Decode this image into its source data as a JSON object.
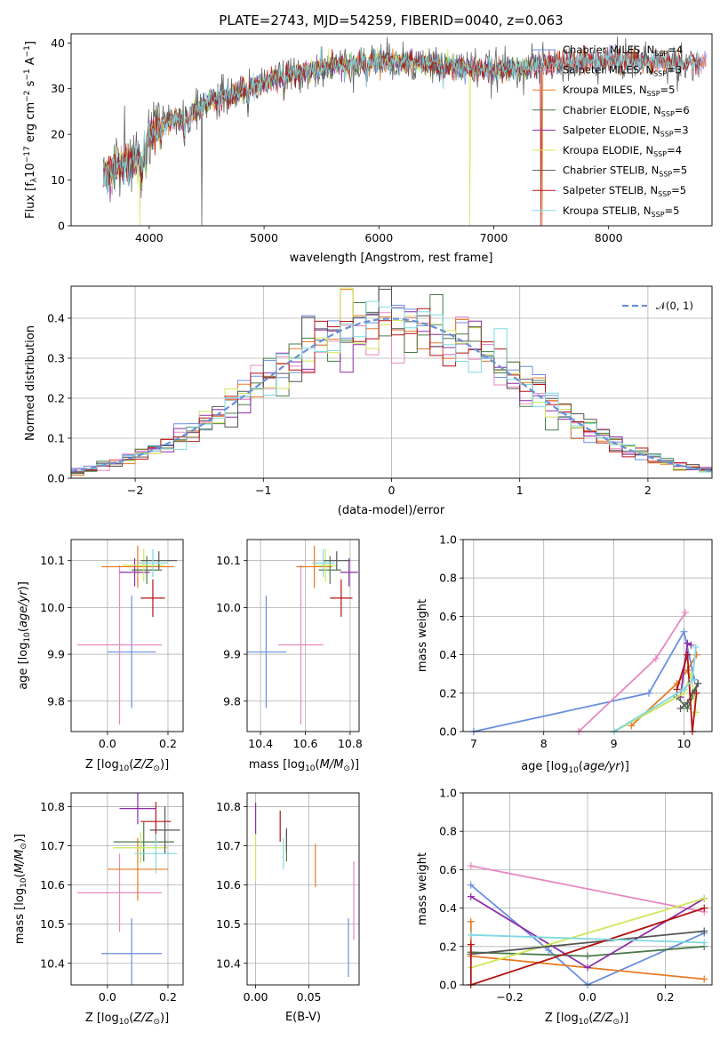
{
  "colors": {
    "chabrier_miles": "#6a8fe0",
    "salpeter_miles": "#e888c0",
    "kroupa_miles": "#e87a24",
    "chabrier_elodie": "#4a7a4a",
    "salpeter_elodie": "#8e2ea8",
    "kroupa_elodie": "#cfe85a",
    "chabrier_stelib": "#555555",
    "salpeter_stelib": "#b41414",
    "kroupa_stelib": "#7fd8e0",
    "normal_dashed": "#6a8fd8",
    "grid": "#b0b0b0"
  },
  "chart_data": [
    {
      "id": "spectrum",
      "type": "line",
      "title": "PLATE=2743, MJD=54259, FIBERID=0040, z=0.063",
      "xlabel": "wavelength [Angstrom, rest frame]",
      "ylabel": "Flux [f_λ 10^-17 erg cm^-2 s^-1 A^-1]",
      "xlim": [
        3320,
        8900
      ],
      "ylim": [
        0,
        42
      ],
      "xticks": [
        4000,
        5000,
        6000,
        7000,
        8000
      ],
      "yticks": [
        0,
        10,
        20,
        30,
        40
      ],
      "grid": false,
      "legend_position": "top-right",
      "series": [
        {
          "name": "Chabrier MILES, N_SSP=4",
          "color_key": "chabrier_miles"
        },
        {
          "name": "Salpeter MILES, N_SSP=3",
          "color_key": "salpeter_miles"
        },
        {
          "name": "Kroupa MILES, N_SSP=5",
          "color_key": "kroupa_miles"
        },
        {
          "name": "Chabrier ELODIE, N_SSP=6",
          "color_key": "chabrier_elodie"
        },
        {
          "name": "Salpeter ELODIE, N_SSP=3",
          "color_key": "salpeter_elodie"
        },
        {
          "name": "Kroupa ELODIE, N_SSP=4",
          "color_key": "kroupa_elodie"
        },
        {
          "name": "Chabrier STELIB, N_SSP=5",
          "color_key": "chabrier_stelib"
        },
        {
          "name": "Salpeter STELIB, N_SSP=5",
          "color_key": "salpeter_stelib"
        },
        {
          "name": "Kroupa STELIB, N_SSP=5",
          "color_key": "kroupa_stelib"
        }
      ],
      "continuum": {
        "x": [
          3580,
          3700,
          3800,
          3900,
          3950,
          4000,
          4100,
          4200,
          4300,
          4400,
          4500,
          4600,
          4700,
          4800,
          4900,
          5000,
          5200,
          5400,
          5600,
          5800,
          6000,
          6200,
          6400,
          6600,
          6800,
          7000,
          7200,
          7400,
          7600,
          7800,
          8000,
          8200,
          8400,
          8600,
          8800
        ],
        "y": [
          11,
          12,
          13.5,
          14.5,
          16,
          20,
          22,
          23,
          24,
          25,
          27,
          28,
          28.5,
          29.5,
          30.5,
          31.5,
          33,
          34,
          35,
          35.5,
          36,
          35.8,
          35.5,
          35,
          34.5,
          34,
          34.5,
          35,
          35.5,
          35.8,
          36,
          36,
          36,
          35.8,
          35.5
        ]
      }
    },
    {
      "id": "residuals",
      "type": "step",
      "xlabel": "(data-model)/error",
      "ylabel": "Normed distribution",
      "xlim": [
        -2.5,
        2.5
      ],
      "ylim": [
        0,
        0.48
      ],
      "xticks": [
        -2,
        -1,
        0,
        1,
        2
      ],
      "yticks": [
        0.0,
        0.1,
        0.2,
        0.3,
        0.4
      ],
      "grid": true,
      "legend_position": "top-right",
      "normal_label": "𝒩(0, 1)"
    },
    {
      "id": "age_vs_Z",
      "type": "errorbar",
      "xlabel": "Z [log10(Z/Z⊙)]",
      "ylabel": "age  [log10(age/yr)]",
      "xlim": [
        -0.12,
        0.25
      ],
      "ylim": [
        9.735,
        10.145
      ],
      "xticks": [
        0.0,
        0.2
      ],
      "yticks": [
        9.8,
        9.9,
        10.0,
        10.1
      ],
      "grid": true,
      "points": [
        {
          "k": "chabrier_miles",
          "x": 0.08,
          "y": 9.905,
          "ex": 0.08,
          "ey": 0.12
        },
        {
          "k": "salpeter_miles",
          "x": 0.04,
          "y": 9.92,
          "ex": 0.14,
          "ey": 0.17
        },
        {
          "k": "kroupa_miles",
          "x": 0.1,
          "y": 10.087,
          "ex": 0.12,
          "ey": 0.045
        },
        {
          "k": "chabrier_elodie",
          "x": 0.13,
          "y": 10.08,
          "ex": 0.05,
          "ey": 0.03
        },
        {
          "k": "salpeter_elodie",
          "x": 0.09,
          "y": 10.075,
          "ex": 0.05,
          "ey": 0.03
        },
        {
          "k": "kroupa_elodie",
          "x": 0.12,
          "y": 10.09,
          "ex": 0.07,
          "ey": 0.035
        },
        {
          "k": "chabrier_stelib",
          "x": 0.17,
          "y": 10.1,
          "ex": 0.06,
          "ey": 0.02
        },
        {
          "k": "salpeter_stelib",
          "x": 0.15,
          "y": 10.02,
          "ex": 0.04,
          "ey": 0.04
        },
        {
          "k": "kroupa_stelib",
          "x": 0.15,
          "y": 10.095,
          "ex": 0.05,
          "ey": 0.03
        }
      ]
    },
    {
      "id": "age_vs_mass",
      "type": "errorbar",
      "xlabel": "mass [log10(M/M⊙)]",
      "xlim": [
        10.34,
        10.84
      ],
      "ylim": [
        9.735,
        10.145
      ],
      "xticks": [
        10.4,
        10.6,
        10.8
      ],
      "yticks": [
        9.8,
        9.9,
        10.0,
        10.1
      ],
      "grid": true,
      "points": [
        {
          "k": "chabrier_miles",
          "x": 10.425,
          "y": 9.905,
          "ex": 0.09,
          "ey": 0.12
        },
        {
          "k": "salpeter_miles",
          "x": 10.58,
          "y": 9.92,
          "ex": 0.1,
          "ey": 0.17
        },
        {
          "k": "kroupa_miles",
          "x": 10.64,
          "y": 10.087,
          "ex": 0.08,
          "ey": 0.045
        },
        {
          "k": "chabrier_elodie",
          "x": 10.71,
          "y": 10.08,
          "ex": 0.05,
          "ey": 0.03
        },
        {
          "k": "salpeter_elodie",
          "x": 10.795,
          "y": 10.075,
          "ex": 0.04,
          "ey": 0.03
        },
        {
          "k": "kroupa_elodie",
          "x": 10.69,
          "y": 10.09,
          "ex": 0.05,
          "ey": 0.035
        },
        {
          "k": "chabrier_stelib",
          "x": 10.74,
          "y": 10.1,
          "ex": 0.06,
          "ey": 0.02
        },
        {
          "k": "salpeter_stelib",
          "x": 10.76,
          "y": 10.02,
          "ex": 0.05,
          "ey": 0.04
        },
        {
          "k": "kroupa_stelib",
          "x": 10.68,
          "y": 10.095,
          "ex": 0.05,
          "ey": 0.03
        }
      ]
    },
    {
      "id": "weight_vs_age",
      "type": "line",
      "xlabel": "age  [log10(age/yr)]",
      "ylabel": "mass weight",
      "xlim": [
        6.85,
        10.4
      ],
      "ylim": [
        0,
        1
      ],
      "xticks": [
        7,
        8,
        9,
        10
      ],
      "yticks": [
        0.0,
        0.2,
        0.4,
        0.6,
        0.8,
        1.0
      ],
      "grid": true,
      "series": [
        {
          "k": "chabrier_miles",
          "x": [
            7.0,
            9.5,
            10.0,
            10.15
          ],
          "y": [
            0.0,
            0.2,
            0.52,
            0.27
          ]
        },
        {
          "k": "salpeter_miles",
          "x": [
            8.5,
            9.6,
            10.02
          ],
          "y": [
            0.0,
            0.38,
            0.62
          ]
        },
        {
          "k": "kroupa_miles",
          "x": [
            9.25,
            9.9,
            10.05,
            10.18
          ],
          "y": [
            0.03,
            0.25,
            0.32,
            0.4
          ]
        },
        {
          "k": "chabrier_elodie",
          "x": [
            9.0,
            9.9,
            10.05,
            10.15,
            10.2
          ],
          "y": [
            0.0,
            0.18,
            0.12,
            0.2,
            0.25
          ]
        },
        {
          "k": "salpeter_elodie",
          "x": [
            9.95,
            10.05,
            10.1
          ],
          "y": [
            0.18,
            0.46,
            0.45
          ]
        },
        {
          "k": "kroupa_elodie",
          "x": [
            9.0,
            10.0,
            10.1,
            10.17
          ],
          "y": [
            0.0,
            0.2,
            0.3,
            0.1
          ]
        },
        {
          "k": "chabrier_stelib",
          "x": [
            9.95,
            10.05,
            10.12,
            10.2
          ],
          "y": [
            0.12,
            0.15,
            0.2,
            0.25
          ]
        },
        {
          "k": "salpeter_stelib",
          "x": [
            9.9,
            10.05,
            10.12,
            10.18
          ],
          "y": [
            0.22,
            0.4,
            0.0,
            0.2
          ]
        },
        {
          "k": "kroupa_stelib",
          "x": [
            9.0,
            10.0,
            10.12,
            10.17
          ],
          "y": [
            0.0,
            0.22,
            0.27,
            0.44
          ]
        }
      ]
    },
    {
      "id": "mass_vs_Z",
      "type": "errorbar",
      "xlabel": "Z [log10(Z/Z⊙)]",
      "ylabel": "mass [log10(M/M⊙)]",
      "xlim": [
        -0.12,
        0.25
      ],
      "ylim": [
        10.345,
        10.835
      ],
      "xticks": [
        0.0,
        0.2
      ],
      "yticks": [
        10.4,
        10.5,
        10.6,
        10.7,
        10.8
      ],
      "grid": true,
      "points": [
        {
          "k": "chabrier_miles",
          "x": 0.08,
          "y": 10.425,
          "ex": 0.1,
          "ey": 0.09
        },
        {
          "k": "salpeter_miles",
          "x": 0.04,
          "y": 10.58,
          "ex": 0.14,
          "ey": 0.1
        },
        {
          "k": "kroupa_miles",
          "x": 0.1,
          "y": 10.64,
          "ex": 0.1,
          "ey": 0.08
        },
        {
          "k": "chabrier_elodie",
          "x": 0.12,
          "y": 10.71,
          "ex": 0.1,
          "ey": 0.05
        },
        {
          "k": "salpeter_elodie",
          "x": 0.1,
          "y": 10.795,
          "ex": 0.06,
          "ey": 0.04
        },
        {
          "k": "kroupa_elodie",
          "x": 0.11,
          "y": 10.695,
          "ex": 0.09,
          "ey": 0.04
        },
        {
          "k": "chabrier_stelib",
          "x": 0.19,
          "y": 10.74,
          "ex": 0.05,
          "ey": 0.06
        },
        {
          "k": "salpeter_stelib",
          "x": 0.16,
          "y": 10.762,
          "ex": 0.05,
          "ey": 0.05
        },
        {
          "k": "kroupa_stelib",
          "x": 0.16,
          "y": 10.68,
          "ex": 0.07,
          "ey": 0.05
        }
      ]
    },
    {
      "id": "mass_vs_ebv",
      "type": "errorbar",
      "xlabel": "E(B-V)",
      "xlim": [
        -0.008,
        0.097
      ],
      "ylim": [
        10.345,
        10.835
      ],
      "xticks": [
        0.0,
        0.05
      ],
      "yticks": [
        10.4,
        10.5,
        10.6,
        10.7,
        10.8
      ],
      "grid": true,
      "points": [
        {
          "k": "chabrier_miles",
          "x": 0.087,
          "y": 10.44,
          "ex": 0,
          "ey": 0.075
        },
        {
          "k": "salpeter_miles",
          "x": 0.092,
          "y": 10.56,
          "ex": 0,
          "ey": 0.1
        },
        {
          "k": "kroupa_miles",
          "x": 0.056,
          "y": 10.65,
          "ex": 0,
          "ey": 0.055
        },
        {
          "k": "chabrier_elodie",
          "x": 0.029,
          "y": 10.7,
          "ex": 0,
          "ey": 0.04
        },
        {
          "k": "salpeter_elodie",
          "x": 0.0,
          "y": 10.77,
          "ex": 0,
          "ey": 0.04
        },
        {
          "k": "kroupa_elodie",
          "x": 0.0,
          "y": 10.67,
          "ex": 0,
          "ey": 0.06
        },
        {
          "k": "chabrier_stelib",
          "x": 0.029,
          "y": 10.715,
          "ex": 0,
          "ey": 0.03
        },
        {
          "k": "salpeter_stelib",
          "x": 0.023,
          "y": 10.75,
          "ex": 0,
          "ey": 0.04
        },
        {
          "k": "kroupa_stelib",
          "x": 0.026,
          "y": 10.68,
          "ex": 0,
          "ey": 0.04
        }
      ]
    },
    {
      "id": "weight_vs_Z",
      "type": "line",
      "xlabel": "Z [log10(Z/Z⊙)]",
      "ylabel": "mass weight",
      "xlim": [
        -0.32,
        0.32
      ],
      "ylim": [
        0,
        1
      ],
      "xticks": [
        -0.2,
        0.0,
        0.2
      ],
      "yticks": [
        0.0,
        0.2,
        0.4,
        0.6,
        0.8,
        1.0
      ],
      "grid": true,
      "series": [
        {
          "k": "chabrier_miles",
          "x": [
            -0.3,
            -0.1,
            0.0,
            0.3
          ],
          "y": [
            0.52,
            0.18,
            0.0,
            0.27
          ]
        },
        {
          "k": "salpeter_miles",
          "x": [
            -0.3,
            0.3
          ],
          "y": [
            0.62,
            0.38
          ]
        },
        {
          "k": "kroupa_miles",
          "x": [
            -0.3,
            -0.3,
            0.3
          ],
          "y": [
            0.33,
            0.15,
            0.03
          ]
        },
        {
          "k": "chabrier_elodie",
          "x": [
            -0.3,
            0.0,
            0.3
          ],
          "y": [
            0.17,
            0.15,
            0.2
          ]
        },
        {
          "k": "salpeter_elodie",
          "x": [
            -0.3,
            0.0,
            0.3
          ],
          "y": [
            0.46,
            0.09,
            0.45
          ]
        },
        {
          "k": "kroupa_elodie",
          "x": [
            -0.3,
            0.3
          ],
          "y": [
            0.09,
            0.45
          ]
        },
        {
          "k": "chabrier_stelib",
          "x": [
            -0.3,
            0.3
          ],
          "y": [
            0.16,
            0.28
          ]
        },
        {
          "k": "salpeter_stelib",
          "x": [
            -0.3,
            -0.3,
            0.3
          ],
          "y": [
            0.21,
            0.0,
            0.4
          ]
        },
        {
          "k": "kroupa_stelib",
          "x": [
            -0.3,
            0.3
          ],
          "y": [
            0.26,
            0.22
          ]
        }
      ]
    }
  ]
}
